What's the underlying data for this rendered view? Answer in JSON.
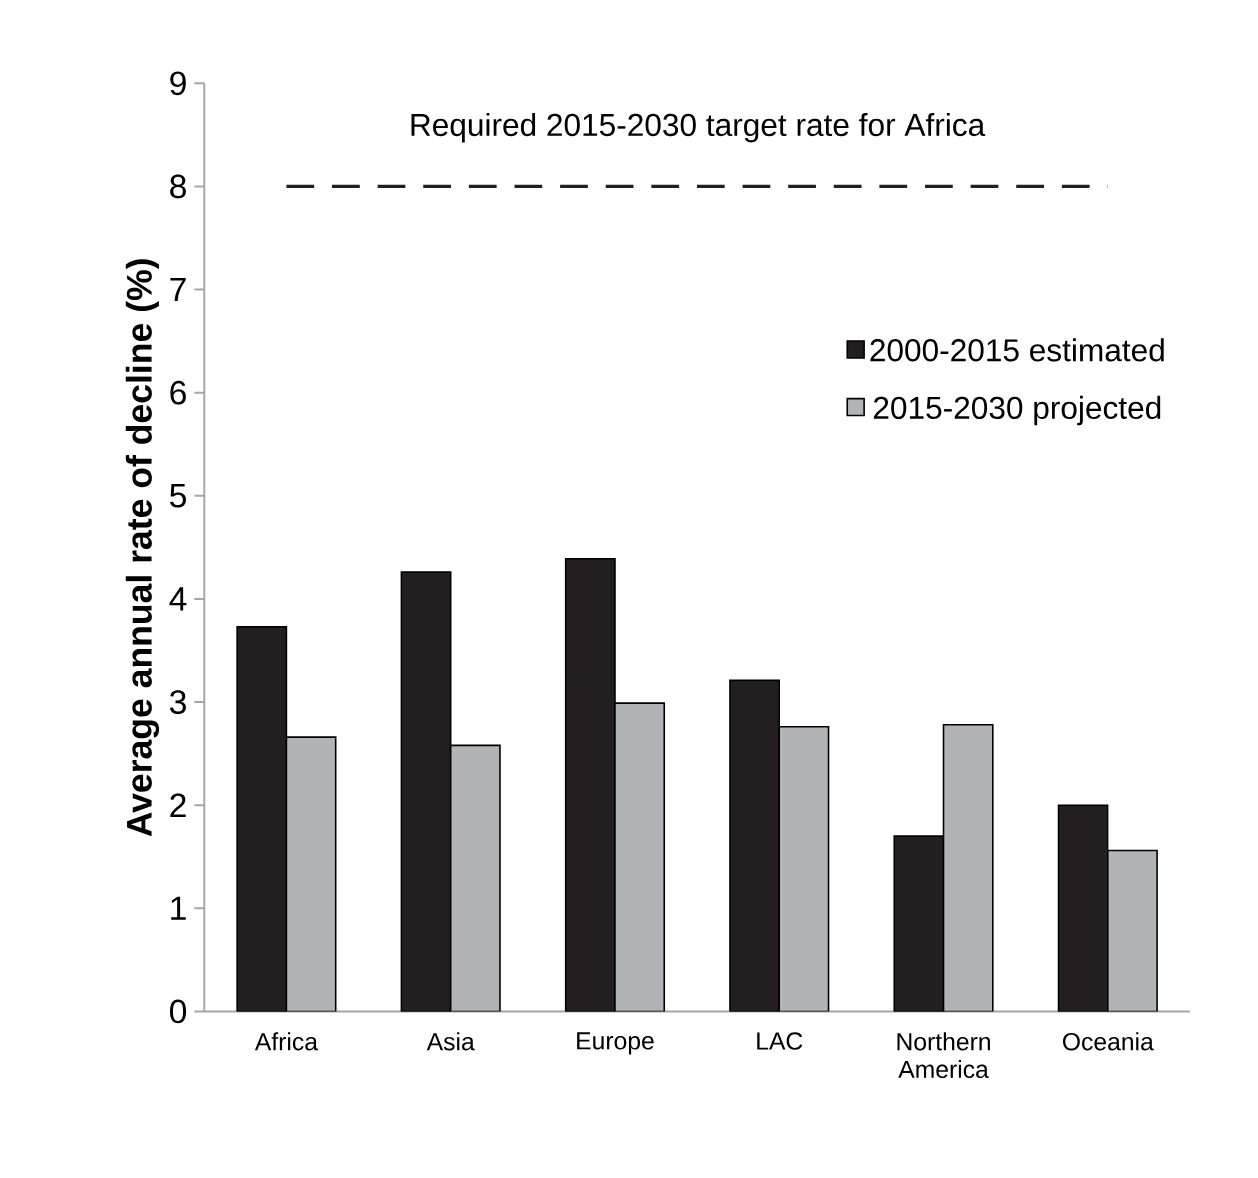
{
  "chart_data": {
    "type": "bar",
    "ylabel": "Average annual rate of decline (%)",
    "categories": [
      "Africa",
      "Asia",
      "Europe",
      "LAC",
      "Northern America",
      "Oceania"
    ],
    "series": [
      {
        "name": "2000-2015 estimated",
        "color": "#231f20",
        "values": [
          3.73,
          4.26,
          4.39,
          3.21,
          1.7,
          2.0
        ]
      },
      {
        "name": "2015-2030 projected",
        "color": "#b1b3b6",
        "values": [
          2.66,
          2.58,
          2.99,
          2.76,
          2.78,
          1.56
        ]
      }
    ],
    "ylim": [
      0,
      9
    ],
    "yticks": [
      0,
      1,
      2,
      3,
      4,
      5,
      6,
      7,
      8,
      9
    ],
    "ref_lines": [
      {
        "axis": "y",
        "value": 8,
        "label": "Required 2015-2030 target rate for Africa",
        "color": "#231f20",
        "line_style": "dashed"
      }
    ],
    "legend": "top right"
  }
}
